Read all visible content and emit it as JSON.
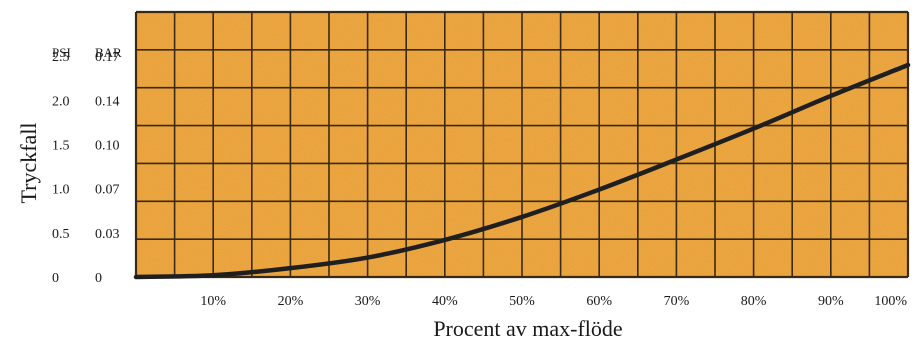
{
  "chart_data": {
    "type": "line",
    "xlabel": "Procent av max-flöde",
    "ylabel": "Tryckfall",
    "x_ticks": [
      "10%",
      "20%",
      "30%",
      "40%",
      "50%",
      "60%",
      "70%",
      "80%",
      "90%",
      "100%"
    ],
    "xlim": [
      0,
      100
    ],
    "ylim": [
      0,
      3.0
    ],
    "y_headers": {
      "psi": "PSI",
      "bar": "BAR"
    },
    "y_ticks_psi": [
      "0",
      "0.5",
      "1.0",
      "1.5",
      "2.0",
      "2.5"
    ],
    "y_ticks_bar": [
      "0",
      "0.03",
      "0.07",
      "0.10",
      "0.14",
      "0.17"
    ],
    "grid": true,
    "colors": {
      "background": "#F4A73A",
      "grid": "#3a2a12",
      "curve": "#1f1f1f"
    },
    "series": [
      {
        "x": [
          0,
          10,
          20,
          30,
          40,
          50,
          60,
          70,
          80,
          90,
          100
        ],
        "y": [
          0.0,
          0.02,
          0.1,
          0.22,
          0.42,
          0.68,
          0.99,
          1.33,
          1.68,
          2.05,
          2.4
        ]
      }
    ]
  }
}
